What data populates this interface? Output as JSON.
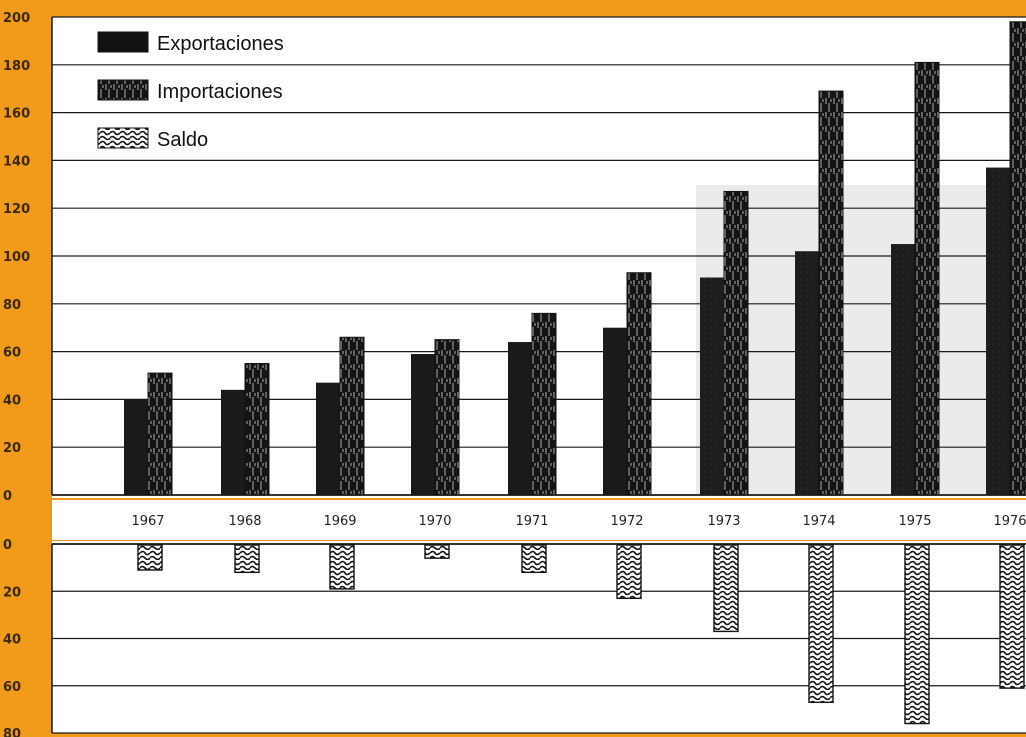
{
  "chart_data": [
    {
      "type": "bar",
      "categories": [
        "1967",
        "1968",
        "1969",
        "1970",
        "1971",
        "1972",
        "1973",
        "1974",
        "1975",
        "1976"
      ],
      "series": [
        {
          "name": "Exportaciones",
          "values": [
            40,
            44,
            47,
            59,
            64,
            70,
            91,
            102,
            105,
            137
          ]
        },
        {
          "name": "Importaciones",
          "values": [
            51,
            55,
            66,
            65,
            76,
            93,
            127,
            169,
            181,
            198
          ]
        }
      ],
      "yticks": [
        "0",
        "20",
        "40",
        "60",
        "80",
        "100",
        "120",
        "140",
        "160",
        "180",
        "200"
      ],
      "ylim": [
        0,
        200
      ],
      "legend": "top-left",
      "grid": true
    },
    {
      "type": "bar",
      "categories": [
        "1967",
        "1968",
        "1969",
        "1970",
        "1971",
        "1972",
        "1973",
        "1974",
        "1975",
        "1976"
      ],
      "series": [
        {
          "name": "Saldo",
          "values": [
            -11,
            -12,
            -19,
            -6,
            -12,
            -23,
            -37,
            -67,
            -76,
            -61
          ]
        }
      ],
      "yticks": [
        "0",
        "20",
        "40",
        "60",
        "80"
      ],
      "ylim": [
        -80,
        0
      ],
      "grid": true
    }
  ],
  "legend": [
    {
      "label": "Exportaciones"
    },
    {
      "label": "Importaciones"
    },
    {
      "label": "Saldo"
    }
  ],
  "colors": {
    "background": "#f29a1c",
    "panel": "#ffffff",
    "exports": "#1a1a1a",
    "imports": "#111111",
    "balance": "#ffffff",
    "grid": "#1a1a1a",
    "shadow_zone": "#ebebeb"
  }
}
